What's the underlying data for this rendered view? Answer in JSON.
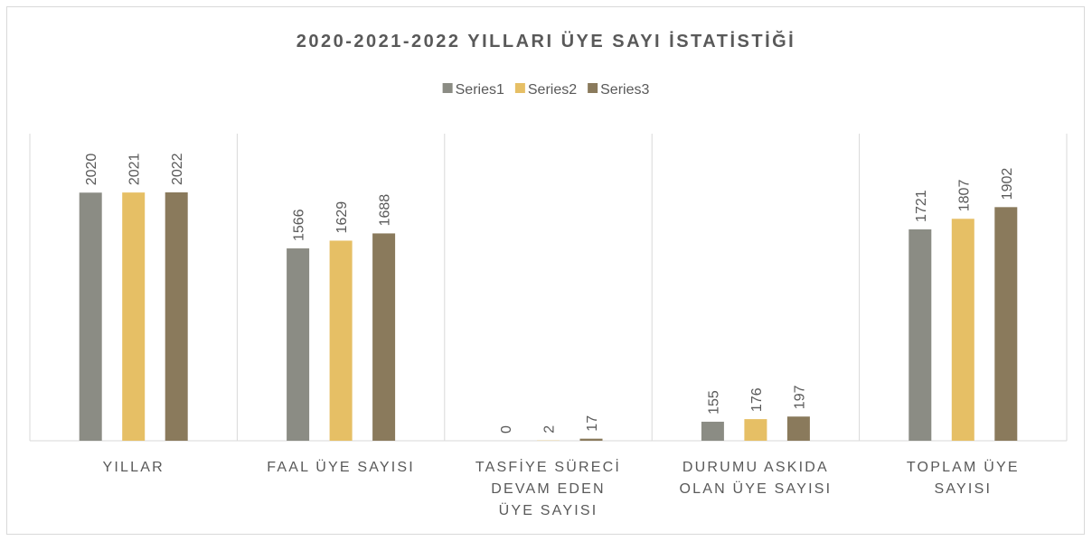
{
  "chart_data": {
    "type": "bar",
    "title": "2020-2021-2022 YILLARI ÜYE SAYI İSTATİSTİĞİ",
    "categories": [
      "YILLAR",
      "FAAL ÜYE SAYISI",
      "TASFİYE SÜRECİ DEVAM EDEN ÜYE SAYISI",
      "DURUMU ASKIDA OLAN ÜYE SAYISI",
      "TOPLAM ÜYE SAYISI"
    ],
    "series": [
      {
        "name": "Series1",
        "color": "#8b8c84",
        "values": [
          2020,
          1566,
          0,
          155,
          1721
        ]
      },
      {
        "name": "Series2",
        "color": "#e6bf65",
        "values": [
          2021,
          1629,
          2,
          176,
          1807
        ]
      },
      {
        "name": "Series3",
        "color": "#8a7a5c",
        "values": [
          2022,
          1688,
          17,
          197,
          1902
        ]
      }
    ],
    "ylim": [
      0,
      2500
    ],
    "legend": "top"
  }
}
